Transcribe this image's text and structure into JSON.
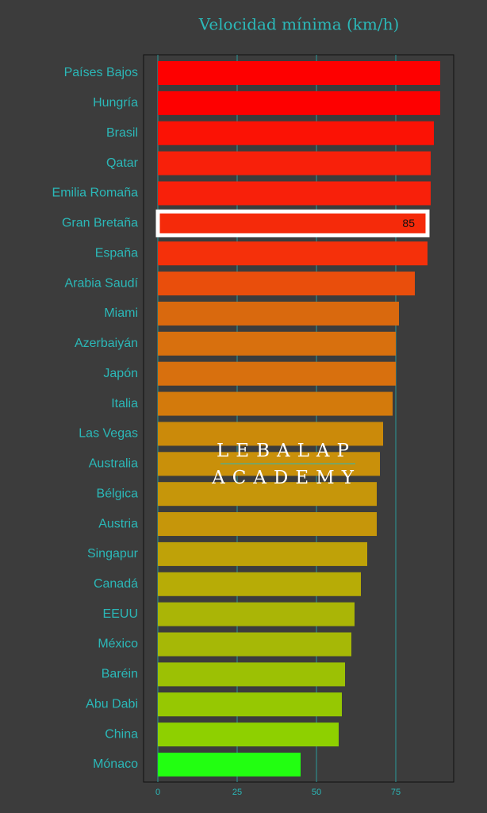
{
  "chart_data": {
    "type": "barh",
    "title": "Velocidad mínima (km/h)",
    "categories": [
      "Países Bajos",
      "Hungría",
      "Brasil",
      "Qatar",
      "Emilia Romaña",
      "Gran Bretaña",
      "España",
      "Arabia Saudí",
      "Miami",
      "Azerbaiyán",
      "Japón",
      "Italia",
      "Las Vegas",
      "Australia",
      "Bélgica",
      "Austria",
      "Singapur",
      "Canadá",
      "EEUU",
      "México",
      "Baréin",
      "Abu Dabi",
      "China",
      "Mónaco"
    ],
    "values": [
      89,
      89,
      87,
      86,
      86,
      85,
      85,
      81,
      76,
      75,
      75,
      74,
      71,
      70,
      69,
      69,
      66,
      64,
      62,
      61,
      59,
      58,
      57,
      45
    ],
    "colors": [
      "#fe0000",
      "#fe0000",
      "#fb1205",
      "#f8200a",
      "#f8200a",
      "#f52a0a",
      "#f5300a",
      "#e94e0c",
      "#d9690e",
      "#d8700e",
      "#d8700e",
      "#d37a0c",
      "#cb8a0a",
      "#c9900a",
      "#c6960a",
      "#c6960a",
      "#bfa208",
      "#b7ac06",
      "#aab506",
      "#a6b806",
      "#9cc104",
      "#96c802",
      "#8ed000",
      "#22ff11"
    ],
    "highlight_index": 5,
    "xlim": [
      -4.5,
      93.25
    ],
    "xticks": [
      0,
      25,
      50,
      75
    ],
    "grid": true,
    "watermark": [
      "LEBALAP",
      "ACADEMY"
    ]
  }
}
